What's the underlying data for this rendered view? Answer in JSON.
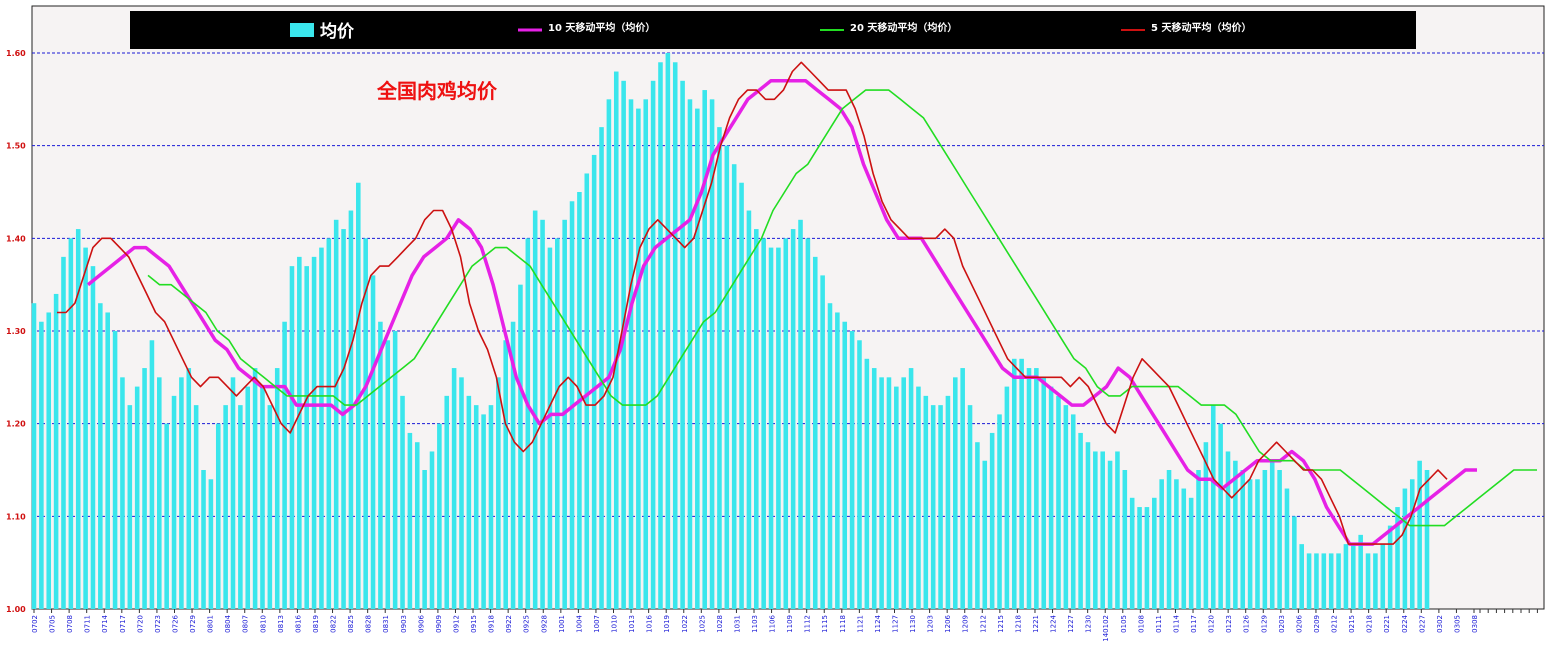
{
  "chart_data": {
    "type": "bar",
    "title": "全国肉鸡均价",
    "ylim": [
      1.0,
      1.6
    ],
    "yticks": [
      "1.00",
      "1.10",
      "1.20",
      "1.30",
      "1.40",
      "1.50",
      "1.60"
    ],
    "grid": true,
    "legend_position": "top",
    "xtick_labels": [
      "0702",
      "0705",
      "0708",
      "0711",
      "0714",
      "0717",
      "0720",
      "0723",
      "0726",
      "0729",
      "0801",
      "0804",
      "0807",
      "0810",
      "0813",
      "0816",
      "0819",
      "0822",
      "0825",
      "0828",
      "0831",
      "0903",
      "0906",
      "0909",
      "0912",
      "0915",
      "0918",
      "0922",
      "0925",
      "0928",
      "1001",
      "1004",
      "1007",
      "1010",
      "1013",
      "1016",
      "1019",
      "1022",
      "1025",
      "1028",
      "1031",
      "1103",
      "1106",
      "1109",
      "1112",
      "1115",
      "1118",
      "1121",
      "1124",
      "1127",
      "1130",
      "1203",
      "1206",
      "1209",
      "1212",
      "1215",
      "1218",
      "1221",
      "1224",
      "1227",
      "1230",
      "140102",
      "0105",
      "0108",
      "0111",
      "0114",
      "0117",
      "0120",
      "0123",
      "0126",
      "0129",
      "0203",
      "0206",
      "0209",
      "0212",
      "0215",
      "0218",
      "0221",
      "0224",
      "0227",
      "0302",
      "0305",
      "0308"
    ],
    "bar_series": {
      "name": "均价",
      "color": "#3ae6ec",
      "values": [
        1.33,
        1.31,
        1.32,
        1.34,
        1.38,
        1.4,
        1.41,
        1.39,
        1.37,
        1.33,
        1.32,
        1.3,
        1.25,
        1.22,
        1.24,
        1.26,
        1.29,
        1.25,
        1.2,
        1.23,
        1.25,
        1.26,
        1.22,
        1.15,
        1.14,
        1.2,
        1.22,
        1.25,
        1.22,
        1.24,
        1.26,
        1.24,
        1.22,
        1.26,
        1.31,
        1.37,
        1.38,
        1.37,
        1.38,
        1.39,
        1.4,
        1.42,
        1.41,
        1.43,
        1.46,
        1.4,
        1.36,
        1.31,
        1.29,
        1.3,
        1.23,
        1.19,
        1.18,
        1.15,
        1.17,
        1.2,
        1.23,
        1.26,
        1.25,
        1.23,
        1.22,
        1.21,
        1.22,
        1.25,
        1.29,
        1.31,
        1.35,
        1.4,
        1.43,
        1.42,
        1.39,
        1.4,
        1.42,
        1.44,
        1.45,
        1.47,
        1.49,
        1.52,
        1.55,
        1.58,
        1.57,
        1.55,
        1.54,
        1.55,
        1.57,
        1.59,
        1.6,
        1.59,
        1.57,
        1.55,
        1.54,
        1.56,
        1.55,
        1.52,
        1.5,
        1.48,
        1.46,
        1.43,
        1.41,
        1.4,
        1.39,
        1.39,
        1.4,
        1.41,
        1.42,
        1.4,
        1.38,
        1.36,
        1.33,
        1.32,
        1.31,
        1.3,
        1.29,
        1.27,
        1.26,
        1.25,
        1.25,
        1.24,
        1.25,
        1.26,
        1.24,
        1.23,
        1.22,
        1.22,
        1.23,
        1.25,
        1.26,
        1.22,
        1.18,
        1.16,
        1.19,
        1.21,
        1.24,
        1.27,
        1.27,
        1.26,
        1.26,
        1.25,
        1.24,
        1.23,
        1.22,
        1.21,
        1.19,
        1.18,
        1.17,
        1.17,
        1.16,
        1.17,
        1.15,
        1.12,
        1.11,
        1.11,
        1.12,
        1.14,
        1.15,
        1.14,
        1.13,
        1.12,
        1.15,
        1.18,
        1.22,
        1.2,
        1.17,
        1.16,
        1.15,
        1.14,
        1.14,
        1.15,
        1.16,
        1.15,
        1.13,
        1.1,
        1.07,
        1.06,
        1.06,
        1.06,
        1.06,
        1.06,
        1.07,
        1.07,
        1.08,
        1.06,
        1.06,
        1.07,
        1.09,
        1.11,
        1.13,
        1.14,
        1.16,
        1.15
      ]
    },
    "line_series": [
      {
        "name": "10 天移动平均（均价）",
        "color": "#e621e6",
        "values": [
          1.35,
          1.36,
          1.37,
          1.38,
          1.39,
          1.39,
          1.38,
          1.37,
          1.35,
          1.33,
          1.31,
          1.29,
          1.28,
          1.26,
          1.25,
          1.24,
          1.24,
          1.24,
          1.22,
          1.22,
          1.22,
          1.22,
          1.21,
          1.22,
          1.24,
          1.27,
          1.3,
          1.33,
          1.36,
          1.38,
          1.39,
          1.4,
          1.42,
          1.41,
          1.39,
          1.35,
          1.3,
          1.25,
          1.22,
          1.2,
          1.21,
          1.21,
          1.22,
          1.23,
          1.24,
          1.25,
          1.28,
          1.33,
          1.37,
          1.39,
          1.4,
          1.41,
          1.42,
          1.45,
          1.49,
          1.51,
          1.53,
          1.55,
          1.56,
          1.57,
          1.57,
          1.57,
          1.57,
          1.56,
          1.55,
          1.54,
          1.52,
          1.48,
          1.45,
          1.42,
          1.4,
          1.4,
          1.4,
          1.38,
          1.36,
          1.34,
          1.32,
          1.3,
          1.28,
          1.26,
          1.25,
          1.25,
          1.25,
          1.24,
          1.23,
          1.22,
          1.22,
          1.23,
          1.24,
          1.26,
          1.25,
          1.23,
          1.21,
          1.19,
          1.17,
          1.15,
          1.14,
          1.14,
          1.13,
          1.14,
          1.15,
          1.16,
          1.16,
          1.16,
          1.17,
          1.16,
          1.14,
          1.11,
          1.09,
          1.07,
          1.07,
          1.07,
          1.08,
          1.09,
          1.1,
          1.11,
          1.12,
          1.13,
          1.14,
          1.15,
          1.15
        ]
      },
      {
        "name": "20 天移动平均（均价）",
        "color": "#22dd22",
        "values": [
          1.36,
          1.35,
          1.35,
          1.34,
          1.33,
          1.32,
          1.3,
          1.29,
          1.27,
          1.26,
          1.25,
          1.24,
          1.23,
          1.23,
          1.23,
          1.23,
          1.23,
          1.22,
          1.22,
          1.23,
          1.24,
          1.25,
          1.26,
          1.27,
          1.29,
          1.31,
          1.33,
          1.35,
          1.37,
          1.38,
          1.39,
          1.39,
          1.38,
          1.37,
          1.35,
          1.33,
          1.31,
          1.29,
          1.27,
          1.25,
          1.23,
          1.22,
          1.22,
          1.22,
          1.23,
          1.25,
          1.27,
          1.29,
          1.31,
          1.32,
          1.34,
          1.36,
          1.38,
          1.4,
          1.43,
          1.45,
          1.47,
          1.48,
          1.5,
          1.52,
          1.54,
          1.55,
          1.56,
          1.56,
          1.56,
          1.55,
          1.54,
          1.53,
          1.51,
          1.49,
          1.47,
          1.45,
          1.43,
          1.41,
          1.39,
          1.37,
          1.35,
          1.33,
          1.31,
          1.29,
          1.27,
          1.26,
          1.24,
          1.23,
          1.23,
          1.24,
          1.24,
          1.24,
          1.24,
          1.24,
          1.23,
          1.22,
          1.22,
          1.22,
          1.21,
          1.19,
          1.17,
          1.16,
          1.16,
          1.16,
          1.15,
          1.15,
          1.15,
          1.15,
          1.14,
          1.13,
          1.12,
          1.11,
          1.1,
          1.09,
          1.09,
          1.09,
          1.09,
          1.1,
          1.11,
          1.12,
          1.13,
          1.14,
          1.15,
          1.15,
          1.15
        ]
      },
      {
        "name": "5 天移动平均（均价）",
        "color": "#cc1111",
        "values": [
          1.32,
          1.32,
          1.33,
          1.36,
          1.39,
          1.4,
          1.4,
          1.39,
          1.38,
          1.36,
          1.34,
          1.32,
          1.31,
          1.29,
          1.27,
          1.25,
          1.24,
          1.25,
          1.25,
          1.24,
          1.23,
          1.24,
          1.25,
          1.24,
          1.22,
          1.2,
          1.19,
          1.21,
          1.23,
          1.24,
          1.24,
          1.24,
          1.26,
          1.29,
          1.33,
          1.36,
          1.37,
          1.37,
          1.38,
          1.39,
          1.4,
          1.42,
          1.43,
          1.43,
          1.41,
          1.38,
          1.33,
          1.3,
          1.28,
          1.25,
          1.2,
          1.18,
          1.17,
          1.18,
          1.2,
          1.22,
          1.24,
          1.25,
          1.24,
          1.22,
          1.22,
          1.23,
          1.25,
          1.3,
          1.35,
          1.39,
          1.41,
          1.42,
          1.41,
          1.4,
          1.39,
          1.4,
          1.43,
          1.46,
          1.5,
          1.53,
          1.55,
          1.56,
          1.56,
          1.55,
          1.55,
          1.56,
          1.58,
          1.59,
          1.58,
          1.57,
          1.56,
          1.56,
          1.56,
          1.54,
          1.51,
          1.47,
          1.44,
          1.42,
          1.41,
          1.4,
          1.4,
          1.4,
          1.4,
          1.41,
          1.4,
          1.37,
          1.35,
          1.33,
          1.31,
          1.29,
          1.27,
          1.26,
          1.25,
          1.25,
          1.25,
          1.25,
          1.25,
          1.24,
          1.25,
          1.24,
          1.22,
          1.2,
          1.19,
          1.22,
          1.25,
          1.27,
          1.26,
          1.25,
          1.24,
          1.22,
          1.2,
          1.18,
          1.16,
          1.14,
          1.13,
          1.12,
          1.13,
          1.14,
          1.16,
          1.17,
          1.18,
          1.17,
          1.16,
          1.15,
          1.15,
          1.14,
          1.12,
          1.1,
          1.07,
          1.07,
          1.07,
          1.07,
          1.07,
          1.07,
          1.08,
          1.1,
          1.13,
          1.14,
          1.15,
          1.14
        ]
      }
    ],
    "legend": {
      "bar": "均价",
      "line1": "10 天移动平均（均价）",
      "line2": "20 天移动平均（均价）",
      "line3": "5 天移动平均（均价）"
    },
    "colors": {
      "grid": "#1a1ad6",
      "axis_labels": "#d01010",
      "x_labels": "#1a1ad6",
      "title": "#ee1111",
      "legend_bg": "#000000",
      "legend_text": "#ffffff"
    }
  }
}
